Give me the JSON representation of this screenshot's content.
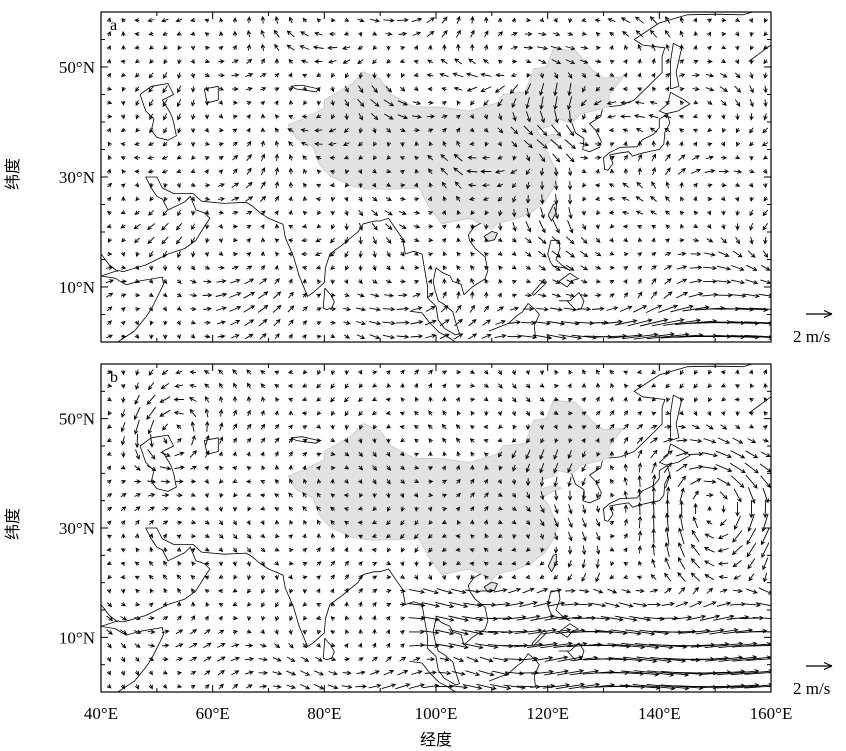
{
  "chart_data": {
    "type": "vector-field-map",
    "x_axis": {
      "title": "经度",
      "range": [
        40,
        160
      ],
      "ticks": [
        {
          "value": 40,
          "label": "40°E"
        },
        {
          "value": 60,
          "label": "60°E"
        },
        {
          "value": 80,
          "label": "80°E"
        },
        {
          "value": 100,
          "label": "100°E"
        },
        {
          "value": 120,
          "label": "120°E"
        },
        {
          "value": 140,
          "label": "140°E"
        },
        {
          "value": 160,
          "label": "160°E"
        }
      ]
    },
    "y_axis": {
      "title": "纬度",
      "range": [
        0,
        60
      ],
      "ticks": [
        {
          "value": 10,
          "label": "10°N"
        },
        {
          "value": 30,
          "label": "30°N"
        },
        {
          "value": 50,
          "label": "50°N"
        }
      ]
    },
    "panels": [
      {
        "letter": "a",
        "reference_vector": {
          "magnitude": 2,
          "label": "2 m/s"
        }
      },
      {
        "letter": "b",
        "reference_vector": {
          "magnitude": 2,
          "label": "2 m/s"
        }
      }
    ],
    "grid": false,
    "china_fill_color": "#e2e2e2",
    "line_color": "#000000"
  }
}
